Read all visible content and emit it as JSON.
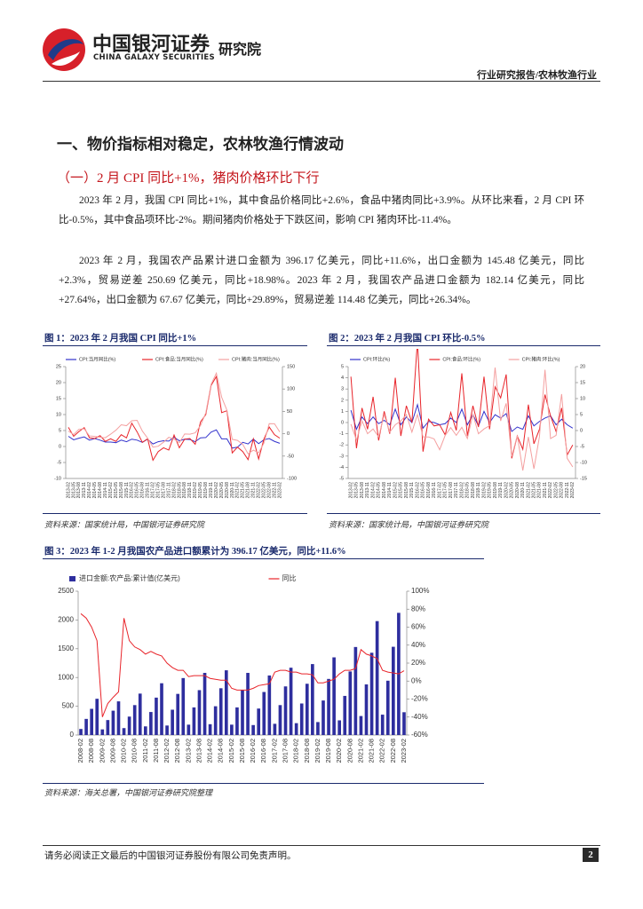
{
  "header": {
    "logo_cn": "中国银河证券",
    "logo_en": "CHINA GALAXY SECURITIES",
    "institute": "研究院",
    "report_type": "行业研究报告/农林牧渔行业"
  },
  "section_title": "一、物价指标相对稳定，农林牧渔行情波动",
  "subsection_title": "（一）2 月 CPI 同比+1%，猪肉价格环比下行",
  "paragraphs": [
    "2023 年 2 月，我国 CPI 同比+1%，其中食品价格同比+2.6%，食品中猪肉同比+3.9%。从环比来看，2 月 CPI 环比-0.5%，其中食品项环比-2%。期间猪肉价格处于下跌区间，影响 CPI 猪肉环比-11.4%。",
    "2023 年 2 月，我国农产品累计进口金额为 396.17 亿美元，同比+11.6%，出口金额为 145.48 亿美元，同比+2.3%，贸易逆差 250.69 亿美元，同比+18.98%。2023 年 2 月，我国农产品进口金额为 182.14 亿美元，同比+27.64%，出口金额为 67.67 亿美元，同比+29.89%，贸易逆差 114.48 亿美元，同比+26.34%。"
  ],
  "figures": [
    {
      "title": "图 1：2023 年 2 月我国 CPI 同比+1%",
      "source": "资料来源：国家统计局，中国银河证券研究院",
      "chart": {
        "type": "line",
        "categories": [
          "2013-02",
          "2013-05",
          "2013-08",
          "2013-11",
          "2014-02",
          "2014-05",
          "2014-08",
          "2014-11",
          "2015-02",
          "2015-05",
          "2015-08",
          "2015-11",
          "2016-02",
          "2016-05",
          "2016-08",
          "2016-11",
          "2017-02",
          "2017-05",
          "2017-08",
          "2017-11",
          "2018-02",
          "2018-05",
          "2018-08",
          "2018-11",
          "2019-02",
          "2019-05",
          "2019-08",
          "2019-11",
          "2020-02",
          "2020-05",
          "2020-08",
          "2020-11",
          "2021-02",
          "2021-05",
          "2021-08",
          "2021-11",
          "2022-02",
          "2022-05",
          "2022-08",
          "2022-11",
          "2023-02"
        ],
        "ylim": [
          -10,
          25
        ],
        "yticks": [
          -10,
          -5,
          0,
          5,
          10,
          15,
          20,
          25
        ],
        "y2lim": [
          -100,
          150
        ],
        "y2ticks": [
          -100,
          -50,
          0,
          50,
          100,
          150
        ],
        "series": [
          {
            "name": "CPI:当月同比(%)",
            "color": "#3333cc",
            "values": [
              3.2,
              2.1,
              2.6,
              3.0,
              2.0,
              2.5,
              2.0,
              1.4,
              1.4,
              1.2,
              2.0,
              1.5,
              2.3,
              2.0,
              1.3,
              2.3,
              0.8,
              1.5,
              1.8,
              1.7,
              2.9,
              1.8,
              2.3,
              2.2,
              1.5,
              2.7,
              2.8,
              4.5,
              5.2,
              2.4,
              2.4,
              -0.5,
              -0.2,
              1.3,
              0.8,
              2.3,
              0.9,
              2.1,
              2.5,
              1.6,
              1.0
            ]
          },
          {
            "name": "CPI:食品:当月同比(%)",
            "color": "#e8242a",
            "values": [
              6.0,
              3.2,
              4.7,
              5.9,
              2.7,
              2.5,
              3.4,
              1.6,
              2.4,
              1.6,
              3.7,
              2.7,
              7.3,
              4.6,
              1.3,
              2.4,
              -4.3,
              -1.6,
              -0.4,
              -1.1,
              3.6,
              -0.4,
              2.3,
              2.5,
              0.7,
              7.7,
              10.0,
              19.1,
              21.9,
              10.6,
              11.2,
              -2.0,
              -0.2,
              -1.6,
              -4.1,
              2.4,
              -3.9,
              2.3,
              6.1,
              3.7,
              2.6
            ]
          },
          {
            "name": "CPI:猪肉:当月同比(%)",
            "color": "#f4a0a0",
            "axis": "y2",
            "values": [
              6.0,
              -1.8,
              10.0,
              11.0,
              -5.0,
              -6.0,
              -8.0,
              -8.9,
              -1.0,
              8.0,
              20.0,
              18.0,
              29.0,
              30.0,
              6.0,
              -10.0,
              -30.0,
              -28.0,
              -19.0,
              -8.0,
              -12.0,
              -20.0,
              -0.6,
              -1.0,
              2.0,
              18.2,
              46.7,
              110.2,
              135.2,
              81.7,
              52.6,
              -12.5,
              -14.9,
              -23.7,
              -44.9,
              -36.7,
              -42.5,
              -21.1,
              22.4,
              22.2,
              3.9
            ]
          }
        ]
      }
    },
    {
      "title": "图 2：2023 年 2 月我国 CPI 环比-0.5%",
      "source": "资料来源：国家统计局，中国银河证券研究院",
      "chart": {
        "type": "line",
        "categories": [
          "2013-02",
          "2013-05",
          "2013-08",
          "2013-11",
          "2014-02",
          "2014-05",
          "2014-08",
          "2014-11",
          "2015-02",
          "2015-05",
          "2015-08",
          "2015-11",
          "2016-02",
          "2016-05",
          "2016-08",
          "2016-11",
          "2017-02",
          "2017-05",
          "2017-08",
          "2017-11",
          "2018-02",
          "2018-05",
          "2018-08",
          "2018-11",
          "2019-02",
          "2019-05",
          "2019-08",
          "2019-11",
          "2020-02",
          "2020-05",
          "2020-08",
          "2020-11",
          "2021-02",
          "2021-05",
          "2021-08",
          "2021-11",
          "2022-02",
          "2022-05",
          "2022-08",
          "2022-11",
          "2023-02"
        ],
        "ylim": [
          -5,
          5
        ],
        "yticks": [
          -5,
          -4,
          -3,
          -2,
          -1,
          0,
          1,
          2,
          3,
          4,
          5
        ],
        "y2lim": [
          -15,
          20
        ],
        "y2ticks": [
          -15,
          -10,
          -5,
          0,
          5,
          10,
          15,
          20
        ],
        "series": [
          {
            "name": "CPI:环比(%)",
            "color": "#3333cc",
            "values": [
              1.1,
              -0.6,
              0.5,
              -0.1,
              0.5,
              -0.1,
              0.2,
              -0.2,
              1.2,
              -0.2,
              0.5,
              0.0,
              1.6,
              -0.5,
              0.1,
              0.0,
              -0.2,
              -0.1,
              0.4,
              0.0,
              1.2,
              -0.2,
              0.7,
              -0.3,
              1.0,
              0.0,
              0.7,
              0.4,
              0.8,
              -0.8,
              -0.4,
              -0.6,
              0.6,
              -0.3,
              0.1,
              0.4,
              0.6,
              -0.2,
              0.3,
              -0.2,
              -0.5
            ]
          },
          {
            "name": "CPI:食品:环比(%)",
            "color": "#e8242a",
            "values": [
              4.1,
              -2.3,
              1.3,
              -0.6,
              2.3,
              -1.6,
              1.0,
              -1.0,
              4.0,
              -1.2,
              1.5,
              0.0,
              7.3,
              -2.6,
              0.3,
              -0.3,
              -0.2,
              -1.1,
              0.9,
              -0.7,
              4.4,
              -1.2,
              1.5,
              -0.4,
              4.1,
              -0.6,
              3.2,
              2.2,
              4.3,
              -3.2,
              -1.2,
              -2.4,
              1.6,
              -1.9,
              -0.6,
              2.5,
              0.6,
              -0.8,
              1.3,
              -2.9,
              -2.0
            ]
          },
          {
            "name": "CPI:猪肉:环比(%)",
            "color": "#f4a0a0",
            "axis": "y2",
            "values": [
              2.0,
              -3.0,
              3.0,
              -1.0,
              0.5,
              -2.0,
              5.0,
              -0.5,
              1.8,
              3.0,
              5.0,
              -0.5,
              5.0,
              -2.0,
              -2.0,
              -2.6,
              -6.0,
              -1.5,
              0.9,
              -1.5,
              1.0,
              -2.5,
              5.0,
              -1.0,
              0.5,
              1.5,
              19.7,
              3.0,
              8.5,
              -8.1,
              -1.6,
              -12.5,
              -2.0,
              -12.0,
              -1.9,
              19.0,
              -2.5,
              -1.5,
              11.4,
              -8.7,
              -11.4
            ]
          }
        ]
      }
    },
    {
      "title": "图 3：2023 年 1-2 月我国农产品进口额累计为 396.17 亿美元，同比+11.6%",
      "source": "资料来源：海关总署，中国银河证券研究院整理",
      "chart": {
        "type": "bar",
        "categories": [
          "2008-02",
          null,
          "2008-08",
          null,
          "2009-02",
          null,
          "2009-08",
          null,
          "2010-02",
          null,
          "2010-08",
          null,
          "2011-02",
          null,
          "2011-08",
          null,
          "2012-02",
          null,
          "2012-08",
          null,
          "2013-02",
          null,
          "2013-08",
          null,
          "2014-02",
          null,
          "2014-08",
          null,
          "2015-02",
          null,
          "2015-08",
          null,
          "2016-02",
          null,
          "2016-08",
          null,
          "2017-02",
          null,
          "2017-08",
          null,
          "2018-02",
          null,
          "2018-08",
          null,
          "2019-02",
          null,
          "2019-08",
          null,
          "2020-02",
          null,
          "2020-08",
          null,
          "2021-02",
          null,
          "2021-08",
          null,
          "2022-02",
          null,
          "2022-08",
          null,
          "2023-02"
        ],
        "ylim": [
          0,
          2500
        ],
        "yticks": [
          0,
          500,
          1000,
          1500,
          2000,
          2500
        ],
        "y2lim": [
          -60,
          100
        ],
        "y2ticks": [
          {
            "value": -60,
            "label": "-60%"
          },
          {
            "value": -40,
            "label": "-40%"
          },
          {
            "value": -20,
            "label": "-20%"
          },
          {
            "value": 0,
            "label": "0%"
          },
          {
            "value": 20,
            "label": "20%"
          },
          {
            "value": 40,
            "label": "40%"
          },
          {
            "value": 60,
            "label": "60%"
          },
          {
            "value": 80,
            "label": "80%"
          },
          {
            "value": 100,
            "label": "100%"
          }
        ],
        "series": [
          {
            "name": "进口金额:农产品:累计值(亿美元)",
            "color": "#2e2e9e",
            "values": [
              105,
              280,
              455,
              630,
              98,
              260,
              423,
              585,
              120,
              320,
              520,
              720,
              150,
              400,
              650,
              900,
              165,
              440,
              715,
              990,
              180,
              480,
              780,
              1080,
              188,
              500,
              813,
              1125,
              180,
              480,
              780,
              1080,
              173,
              460,
              748,
              1035,
              195,
              520,
              845,
              1170,
              206,
              548,
              891,
              1233,
              225,
              600,
              975,
              1350,
              255,
              680,
              1105,
              1530,
              330,
              880,
              1430,
              1980,
              354,
              944,
              1534,
              2124,
              396.17
            ]
          },
          {
            "name": "同比",
            "color": "#e8242a",
            "type": "line",
            "axis": "y2",
            "values": [
              75,
              70,
              60,
              45,
              -40,
              -25,
              -18,
              -12,
              70,
              45,
              38,
              35,
              30,
              33,
              30,
              28,
              20,
              15,
              12,
              12,
              5,
              6,
              6,
              6,
              3,
              2,
              1,
              1,
              -8,
              -10,
              -10,
              -10,
              -8,
              -5,
              -4,
              -3,
              10,
              12,
              12,
              10,
              10,
              8,
              8,
              7,
              -2,
              -2,
              0,
              2,
              8,
              12,
              12,
              14,
              35,
              30,
              28,
              25,
              12,
              10,
              9,
              8,
              11.6
            ]
          }
        ]
      }
    }
  ],
  "footer": {
    "disclaimer": "请务必阅读正文最后的中国银河证券股份有限公司免责声明。",
    "page": "2"
  }
}
